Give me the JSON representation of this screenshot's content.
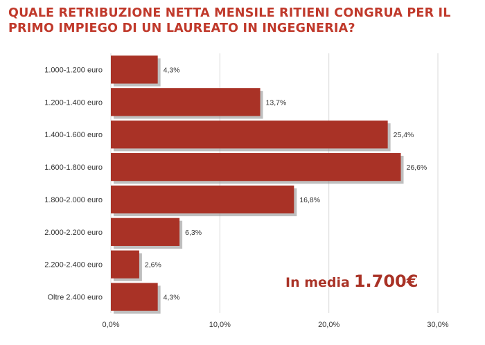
{
  "chart_data": {
    "type": "bar",
    "orientation": "horizontal",
    "title": "QUALE RETRIBUZIONE NETTA MENSILE RITIENI CONGRUA PER IL PRIMO IMPIEGO DI UN LAUREATO IN INGEGNERIA?",
    "categories": [
      "1.000-1.200 euro",
      "1.200-1.400 euro",
      "1.400-1.600 euro",
      "1.600-1.800 euro",
      "1.800-2.000 euro",
      "2.000-2.200 euro",
      "2.200-2.400 euro",
      "Oltre 2.400 euro"
    ],
    "values": [
      4.3,
      13.7,
      25.4,
      26.6,
      16.8,
      6.3,
      2.6,
      4.3
    ],
    "value_labels": [
      "4,3%",
      "13,7%",
      "25,4%",
      "26,6%",
      "16,8%",
      "6,3%",
      "2,6%",
      "4,3%"
    ],
    "xlim": [
      0,
      30
    ],
    "xticks": [
      0,
      10,
      20,
      30
    ],
    "xtick_labels": [
      "0,0%",
      "10,0%",
      "20,0%",
      "30,0%"
    ],
    "xlabel": "",
    "ylabel": "",
    "grid": "vertical",
    "bar_color": "#a93226",
    "title_color": "#c0392b"
  },
  "annotation": {
    "prefix": "In media",
    "value": "1.700€",
    "color": "#a93226"
  }
}
